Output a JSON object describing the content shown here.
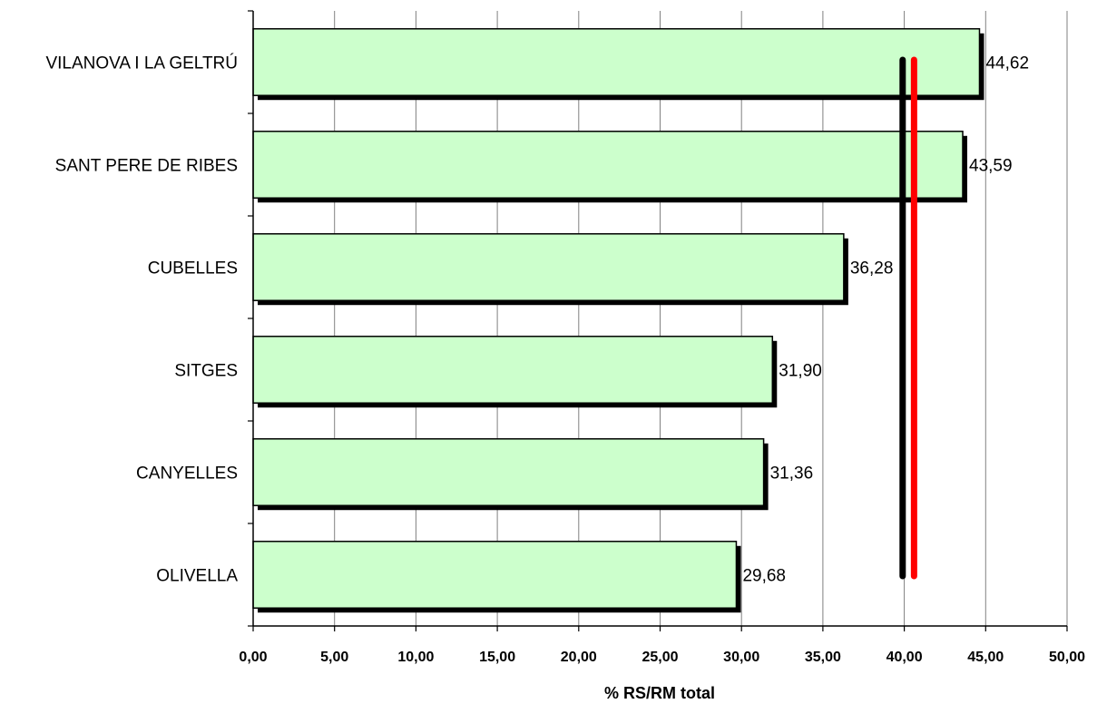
{
  "chart_data": {
    "type": "bar",
    "orientation": "horizontal",
    "categories": [
      "VILANOVA I LA GELTRÚ",
      "SANT PERE DE RIBES",
      "CUBELLES",
      "SITGES",
      "CANYELLES",
      "OLIVELLA"
    ],
    "values": [
      44.62,
      43.59,
      36.28,
      31.9,
      31.36,
      29.68
    ],
    "value_labels": [
      "44,62",
      "43,59",
      "36,28",
      "31,90",
      "31,36",
      "29,68"
    ],
    "xlabel": "% RS/RM total",
    "ylabel": "",
    "title": "",
    "xlim": [
      0,
      50
    ],
    "xticks": [
      0,
      5,
      10,
      15,
      20,
      25,
      30,
      35,
      40,
      45,
      50
    ],
    "xtick_labels": [
      "0,00",
      "5,00",
      "10,00",
      "15,00",
      "20,00",
      "25,00",
      "30,00",
      "35,00",
      "40,00",
      "45,00",
      "50,00"
    ],
    "grid": "vertical",
    "reference_lines": [
      {
        "x": 39.9,
        "color": "#000000"
      },
      {
        "x": 40.6,
        "color": "#ff0000"
      }
    ],
    "colors": {
      "bar_fill": "#ccffcc",
      "bar_shadow": "#000000",
      "grid": "#808080"
    }
  }
}
